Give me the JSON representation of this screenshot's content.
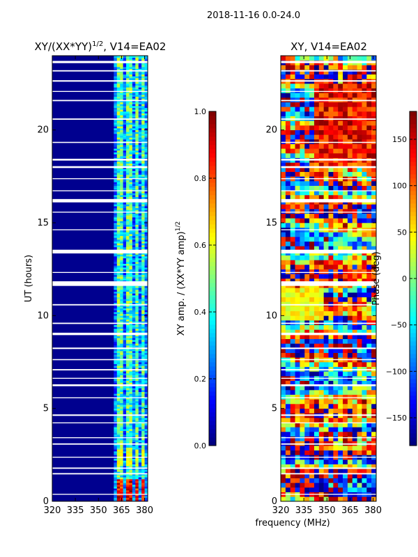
{
  "figure": {
    "suptitle": "2018-11-16 0.0-24.0",
    "xlabel": "frequency (MHz)"
  },
  "colors": {
    "jet": [
      "#00007f",
      "#0000ff",
      "#007fff",
      "#00ffff",
      "#7fff7f",
      "#ffff00",
      "#ff7f00",
      "#ff0000",
      "#7f0000"
    ],
    "background": "#ffffff"
  },
  "chart_data": [
    {
      "type": "heatmap",
      "title": "XY/(XX*YY)^1/2, V14=EA02",
      "title_main": "XY/(XX*YY)",
      "title_sup": "1/2",
      "title_tail": ", V14=EA02",
      "xlabel": "",
      "ylabel": "UT (hours)",
      "xlim": [
        320,
        382
      ],
      "ylim": [
        0,
        24
      ],
      "xticks": [
        320,
        335,
        350,
        365,
        380
      ],
      "yticks": [
        0,
        5,
        10,
        15,
        20
      ],
      "colorbar": {
        "label_main": "XY amp. / (XX*YY amp)",
        "label_sup": "1/2",
        "range": [
          0.0,
          1.0
        ],
        "ticks": [
          "0.0",
          "0.2",
          "0.4",
          "0.6",
          "0.8",
          "1.0"
        ]
      },
      "description": "Mostly low normalized amplitude (~0.05) for 320-360 MHz; elevated amplitude (0.3-0.6) in several vertical channel bands between ~362 and 382 MHz; strong values (~0.8-1.0) near 0-1 UT in the 362-380 MHz band; horizontal white gaps indicate flagged integrations."
    },
    {
      "type": "heatmap",
      "title": "XY, V14=EA02",
      "xlabel": "",
      "ylabel": "Phase (deg)",
      "xlim": [
        320,
        382
      ],
      "ylim": [
        0,
        24
      ],
      "xticks": [
        320,
        335,
        350,
        365,
        380
      ],
      "yticks": [
        0,
        5,
        10,
        15,
        20
      ],
      "colorbar": {
        "label_main": "Phase (deg)",
        "range": [
          -180,
          180
        ],
        "ticks": [
          "-150",
          "-100",
          "-50",
          "0",
          "50",
          "100",
          "150"
        ]
      },
      "description": "XY phase varies across the full -180 to 180 deg range with banded structure in time; broad red/orange regions near 18-22 UT and around 0-3 UT; horizontal white gaps mark flagged data."
    }
  ],
  "flagged_bands_ut": [
    [
      23.6,
      23.72
    ],
    [
      23.15,
      23.22
    ],
    [
      22.6,
      22.68
    ],
    [
      22.05,
      22.1
    ],
    [
      21.55,
      21.62
    ],
    [
      20.55,
      20.62
    ],
    [
      19.3,
      19.36
    ],
    [
      18.35,
      18.45
    ],
    [
      17.95,
      18.05
    ],
    [
      17.35,
      17.4
    ],
    [
      16.7,
      16.75
    ],
    [
      16.1,
      16.28
    ],
    [
      15.55,
      15.6
    ],
    [
      14.6,
      14.65
    ],
    [
      13.35,
      13.55
    ],
    [
      12.3,
      12.35
    ],
    [
      11.6,
      11.85
    ],
    [
      10.55,
      10.62
    ],
    [
      9.55,
      9.62
    ],
    [
      8.95,
      9.08
    ],
    [
      8.2,
      8.28
    ],
    [
      7.6,
      7.66
    ],
    [
      7.05,
      7.12
    ],
    [
      6.6,
      6.65
    ],
    [
      6.2,
      6.3
    ],
    [
      5.55,
      5.6
    ],
    [
      4.6,
      4.68
    ],
    [
      4.2,
      4.25
    ],
    [
      3.4,
      3.45
    ],
    [
      3.05,
      3.12
    ],
    [
      2.35,
      2.4
    ],
    [
      1.75,
      1.82
    ],
    [
      1.45,
      1.52
    ],
    [
      0.35,
      0.4
    ]
  ]
}
